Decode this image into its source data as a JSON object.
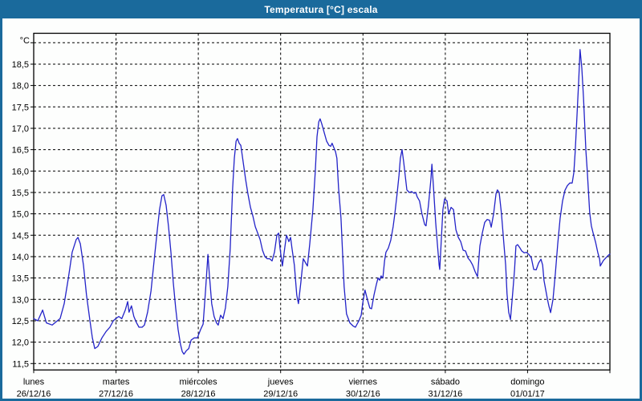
{
  "window": {
    "title": "Temperatura [°C] escala"
  },
  "colors": {
    "titlebar": "#1A6A9C",
    "frame_border": "#1A6A9C",
    "line": "#2323C8",
    "grid": "#000000",
    "background": "#FDFEFD",
    "title_text": "#FFFFFF"
  },
  "chart_data": {
    "type": "line",
    "title": "Temperatura [°C] escala",
    "ylabel": "°C",
    "xlabel": "",
    "legend": "none",
    "grid": "dashed",
    "ylim": [
      11.35,
      19.25
    ],
    "x_range_hours": [
      0,
      168
    ],
    "y_gridline_values": [
      19.0,
      18.5,
      18.0,
      17.5,
      17.0,
      16.5,
      16.0,
      15.5,
      15.0,
      14.5,
      14.0,
      13.5,
      13.0,
      12.5,
      12.0,
      11.5
    ],
    "y_ticks": [
      {
        "value": 18.5,
        "label": "18,5"
      },
      {
        "value": 18.0,
        "label": "18,0"
      },
      {
        "value": 17.5,
        "label": "17,5"
      },
      {
        "value": 17.0,
        "label": "17,0"
      },
      {
        "value": 16.5,
        "label": "16,5"
      },
      {
        "value": 16.0,
        "label": "16,0"
      },
      {
        "value": 15.5,
        "label": "15,5"
      },
      {
        "value": 15.0,
        "label": "15,0"
      },
      {
        "value": 14.5,
        "label": "14,5"
      },
      {
        "value": 14.0,
        "label": "14,0"
      },
      {
        "value": 13.5,
        "label": "13,5"
      },
      {
        "value": 13.0,
        "label": "13,0"
      },
      {
        "value": 12.5,
        "label": "12,5"
      },
      {
        "value": 12.0,
        "label": "12,0"
      },
      {
        "value": 11.5,
        "label": "11,5"
      }
    ],
    "x_days": [
      {
        "name": "lunes",
        "date": "26/12/16",
        "start_hour": 0
      },
      {
        "name": "martes",
        "date": "27/12/16",
        "start_hour": 24
      },
      {
        "name": "miércoles",
        "date": "28/12/16",
        "start_hour": 48
      },
      {
        "name": "jueves",
        "date": "29/12/16",
        "start_hour": 72
      },
      {
        "name": "viernes",
        "date": "30/12/16",
        "start_hour": 96
      },
      {
        "name": "sábado",
        "date": "31/12/16",
        "start_hour": 120
      },
      {
        "name": "domingo",
        "date": "01/01/17",
        "start_hour": 144
      }
    ],
    "series": [
      {
        "name": "Temperatura",
        "color": "#2323C8",
        "points": [
          [
            0,
            12.55
          ],
          [
            1.2,
            12.5
          ],
          [
            2.6,
            12.75
          ],
          [
            3.7,
            12.45
          ],
          [
            5.4,
            12.4
          ],
          [
            6.6,
            12.48
          ],
          [
            7.7,
            12.55
          ],
          [
            8.9,
            12.9
          ],
          [
            10.1,
            13.5
          ],
          [
            11.2,
            14.1
          ],
          [
            12.4,
            14.4
          ],
          [
            12.9,
            14.45
          ],
          [
            13.6,
            14.3
          ],
          [
            14.5,
            13.8
          ],
          [
            15.4,
            13.1
          ],
          [
            16.4,
            12.5
          ],
          [
            17.1,
            12.1
          ],
          [
            17.8,
            11.85
          ],
          [
            18.7,
            11.9
          ],
          [
            19.9,
            12.1
          ],
          [
            21.1,
            12.25
          ],
          [
            22.2,
            12.35
          ],
          [
            23.2,
            12.5
          ],
          [
            23.9,
            12.55
          ],
          [
            24.8,
            12.6
          ],
          [
            25.7,
            12.55
          ],
          [
            26.7,
            12.75
          ],
          [
            27.4,
            12.95
          ],
          [
            27.8,
            12.7
          ],
          [
            28.5,
            12.85
          ],
          [
            29.2,
            12.6
          ],
          [
            30,
            12.45
          ],
          [
            30.7,
            12.35
          ],
          [
            31.6,
            12.35
          ],
          [
            32.3,
            12.4
          ],
          [
            33.2,
            12.7
          ],
          [
            34.2,
            13.2
          ],
          [
            35.1,
            13.9
          ],
          [
            36,
            14.6
          ],
          [
            36.7,
            15.1
          ],
          [
            37.4,
            15.42
          ],
          [
            37.9,
            15.45
          ],
          [
            38.6,
            15.2
          ],
          [
            39.3,
            14.7
          ],
          [
            40,
            14.1
          ],
          [
            40.7,
            13.4
          ],
          [
            41.4,
            12.8
          ],
          [
            42.1,
            12.3
          ],
          [
            42.8,
            11.95
          ],
          [
            43.3,
            11.78
          ],
          [
            43.8,
            11.72
          ],
          [
            44.5,
            11.8
          ],
          [
            45.2,
            11.85
          ],
          [
            45.9,
            12.05
          ],
          [
            46.8,
            12.1
          ],
          [
            47.7,
            12.1
          ],
          [
            48.7,
            12.3
          ],
          [
            49.4,
            12.42
          ],
          [
            50.1,
            13.2
          ],
          [
            50.8,
            14.05
          ],
          [
            51.2,
            13.6
          ],
          [
            51.9,
            12.9
          ],
          [
            52.6,
            12.6
          ],
          [
            53.3,
            12.45
          ],
          [
            53.8,
            12.4
          ],
          [
            54.5,
            12.63
          ],
          [
            55.2,
            12.55
          ],
          [
            55.9,
            12.8
          ],
          [
            56.6,
            13.3
          ],
          [
            57.3,
            14.2
          ],
          [
            58,
            15.6
          ],
          [
            58.5,
            16.3
          ],
          [
            59,
            16.7
          ],
          [
            59.4,
            16.76
          ],
          [
            59.9,
            16.65
          ],
          [
            60.4,
            16.6
          ],
          [
            61.1,
            16.2
          ],
          [
            61.8,
            15.8
          ],
          [
            62.5,
            15.45
          ],
          [
            63.2,
            15.15
          ],
          [
            63.9,
            14.95
          ],
          [
            64.6,
            14.7
          ],
          [
            65.3,
            14.55
          ],
          [
            66,
            14.4
          ],
          [
            66.7,
            14.15
          ],
          [
            67.4,
            14.0
          ],
          [
            68.1,
            13.95
          ],
          [
            68.8,
            13.95
          ],
          [
            69.5,
            13.9
          ],
          [
            70.2,
            14.1
          ],
          [
            70.9,
            14.5
          ],
          [
            71.4,
            14.55
          ],
          [
            71.8,
            14.2
          ],
          [
            72.5,
            13.78
          ],
          [
            73.2,
            14.2
          ],
          [
            73.7,
            14.5
          ],
          [
            74.4,
            14.35
          ],
          [
            74.9,
            14.45
          ],
          [
            75.3,
            14.2
          ],
          [
            76,
            13.8
          ],
          [
            76.7,
            13.1
          ],
          [
            77.2,
            12.9
          ],
          [
            77.9,
            13.4
          ],
          [
            78.6,
            13.95
          ],
          [
            79.3,
            13.85
          ],
          [
            79.8,
            13.78
          ],
          [
            80.5,
            14.3
          ],
          [
            81.4,
            15.1
          ],
          [
            82.1,
            16.0
          ],
          [
            82.6,
            16.8
          ],
          [
            83.1,
            17.15
          ],
          [
            83.5,
            17.22
          ],
          [
            84,
            17.1
          ],
          [
            84.7,
            16.9
          ],
          [
            85.4,
            16.7
          ],
          [
            86.1,
            16.6
          ],
          [
            86.6,
            16.58
          ],
          [
            87,
            16.65
          ],
          [
            87.5,
            16.55
          ],
          [
            88,
            16.45
          ],
          [
            88.4,
            16.3
          ],
          [
            88.9,
            15.6
          ],
          [
            89.6,
            14.9
          ],
          [
            90.1,
            14.0
          ],
          [
            90.5,
            13.3
          ],
          [
            91.2,
            12.66
          ],
          [
            92.2,
            12.45
          ],
          [
            93.1,
            12.38
          ],
          [
            93.8,
            12.35
          ],
          [
            94.8,
            12.5
          ],
          [
            95.5,
            12.63
          ],
          [
            95.9,
            12.9
          ],
          [
            96.6,
            13.22
          ],
          [
            97.3,
            13.0
          ],
          [
            98,
            12.8
          ],
          [
            98.5,
            12.78
          ],
          [
            99.2,
            13.1
          ],
          [
            99.9,
            13.35
          ],
          [
            100.4,
            13.5
          ],
          [
            100.9,
            13.45
          ],
          [
            101.3,
            13.55
          ],
          [
            101.8,
            13.5
          ],
          [
            102.3,
            13.9
          ],
          [
            102.7,
            14.1
          ],
          [
            103.4,
            14.2
          ],
          [
            104.1,
            14.38
          ],
          [
            104.8,
            14.7
          ],
          [
            105.3,
            15.0
          ],
          [
            106,
            15.5
          ],
          [
            106.5,
            15.9
          ],
          [
            106.9,
            16.3
          ],
          [
            107.4,
            16.5
          ],
          [
            107.9,
            16.2
          ],
          [
            108.3,
            15.9
          ],
          [
            108.8,
            15.56
          ],
          [
            109.5,
            15.5
          ],
          [
            110.2,
            15.52
          ],
          [
            110.9,
            15.48
          ],
          [
            111.4,
            15.5
          ],
          [
            111.8,
            15.4
          ],
          [
            112.5,
            15.3
          ],
          [
            113.2,
            15.0
          ],
          [
            114,
            14.75
          ],
          [
            114.4,
            14.72
          ],
          [
            115.1,
            15.2
          ],
          [
            115.8,
            15.8
          ],
          [
            116.1,
            16.16
          ],
          [
            116.5,
            15.7
          ],
          [
            117.2,
            14.8
          ],
          [
            117.7,
            14.3
          ],
          [
            118.2,
            13.8
          ],
          [
            118.4,
            13.7
          ],
          [
            118.9,
            14.5
          ],
          [
            119.3,
            15.1
          ],
          [
            119.8,
            15.35
          ],
          [
            120.5,
            15.3
          ],
          [
            121,
            15.0
          ],
          [
            121.7,
            15.15
          ],
          [
            122.4,
            15.1
          ],
          [
            123.1,
            14.63
          ],
          [
            123.8,
            14.45
          ],
          [
            124.5,
            14.35
          ],
          [
            125.2,
            14.15
          ],
          [
            125.9,
            14.13
          ],
          [
            126.6,
            13.97
          ],
          [
            127.3,
            13.9
          ],
          [
            128,
            13.8
          ],
          [
            128.7,
            13.65
          ],
          [
            129.4,
            13.53
          ],
          [
            130.1,
            14.25
          ],
          [
            130.8,
            14.55
          ],
          [
            131.5,
            14.8
          ],
          [
            132.2,
            14.87
          ],
          [
            132.9,
            14.85
          ],
          [
            133.4,
            14.69
          ],
          [
            134.1,
            15.0
          ],
          [
            134.8,
            15.47
          ],
          [
            135.2,
            15.56
          ],
          [
            135.7,
            15.5
          ],
          [
            136.4,
            15.0
          ],
          [
            137.1,
            14.3
          ],
          [
            137.6,
            13.8
          ],
          [
            138,
            13.13
          ],
          [
            138.5,
            12.7
          ],
          [
            139,
            12.53
          ],
          [
            139.7,
            13.2
          ],
          [
            140.2,
            13.7
          ],
          [
            140.6,
            14.25
          ],
          [
            141.1,
            14.28
          ],
          [
            141.8,
            14.2
          ],
          [
            142.3,
            14.13
          ],
          [
            143,
            14.09
          ],
          [
            143.7,
            14.1
          ],
          [
            144.4,
            14.05
          ],
          [
            145.1,
            13.97
          ],
          [
            145.8,
            13.7
          ],
          [
            146.5,
            13.69
          ],
          [
            147.2,
            13.85
          ],
          [
            147.9,
            13.94
          ],
          [
            148.4,
            13.8
          ],
          [
            148.8,
            13.44
          ],
          [
            149.8,
            13.0
          ],
          [
            150.2,
            12.85
          ],
          [
            150.7,
            12.69
          ],
          [
            151.4,
            13.0
          ],
          [
            152.1,
            13.6
          ],
          [
            152.8,
            14.3
          ],
          [
            153.5,
            14.9
          ],
          [
            154.2,
            15.3
          ],
          [
            154.9,
            15.55
          ],
          [
            155.6,
            15.66
          ],
          [
            156.3,
            15.72
          ],
          [
            157,
            15.72
          ],
          [
            157.5,
            15.97
          ],
          [
            157.9,
            16.47
          ],
          [
            158.4,
            17.3
          ],
          [
            158.9,
            18.1
          ],
          [
            159.3,
            18.84
          ],
          [
            159.8,
            18.41
          ],
          [
            160.3,
            17.72
          ],
          [
            161,
            16.47
          ],
          [
            161.4,
            16.0
          ],
          [
            162.1,
            15.03
          ],
          [
            162.6,
            14.72
          ],
          [
            163.1,
            14.55
          ],
          [
            163.8,
            14.34
          ],
          [
            164.5,
            14.09
          ],
          [
            165,
            13.94
          ],
          [
            165.2,
            13.78
          ],
          [
            166.1,
            13.91
          ],
          [
            166.8,
            13.97
          ],
          [
            167.5,
            14.03
          ],
          [
            168,
            14.06
          ]
        ]
      }
    ]
  }
}
